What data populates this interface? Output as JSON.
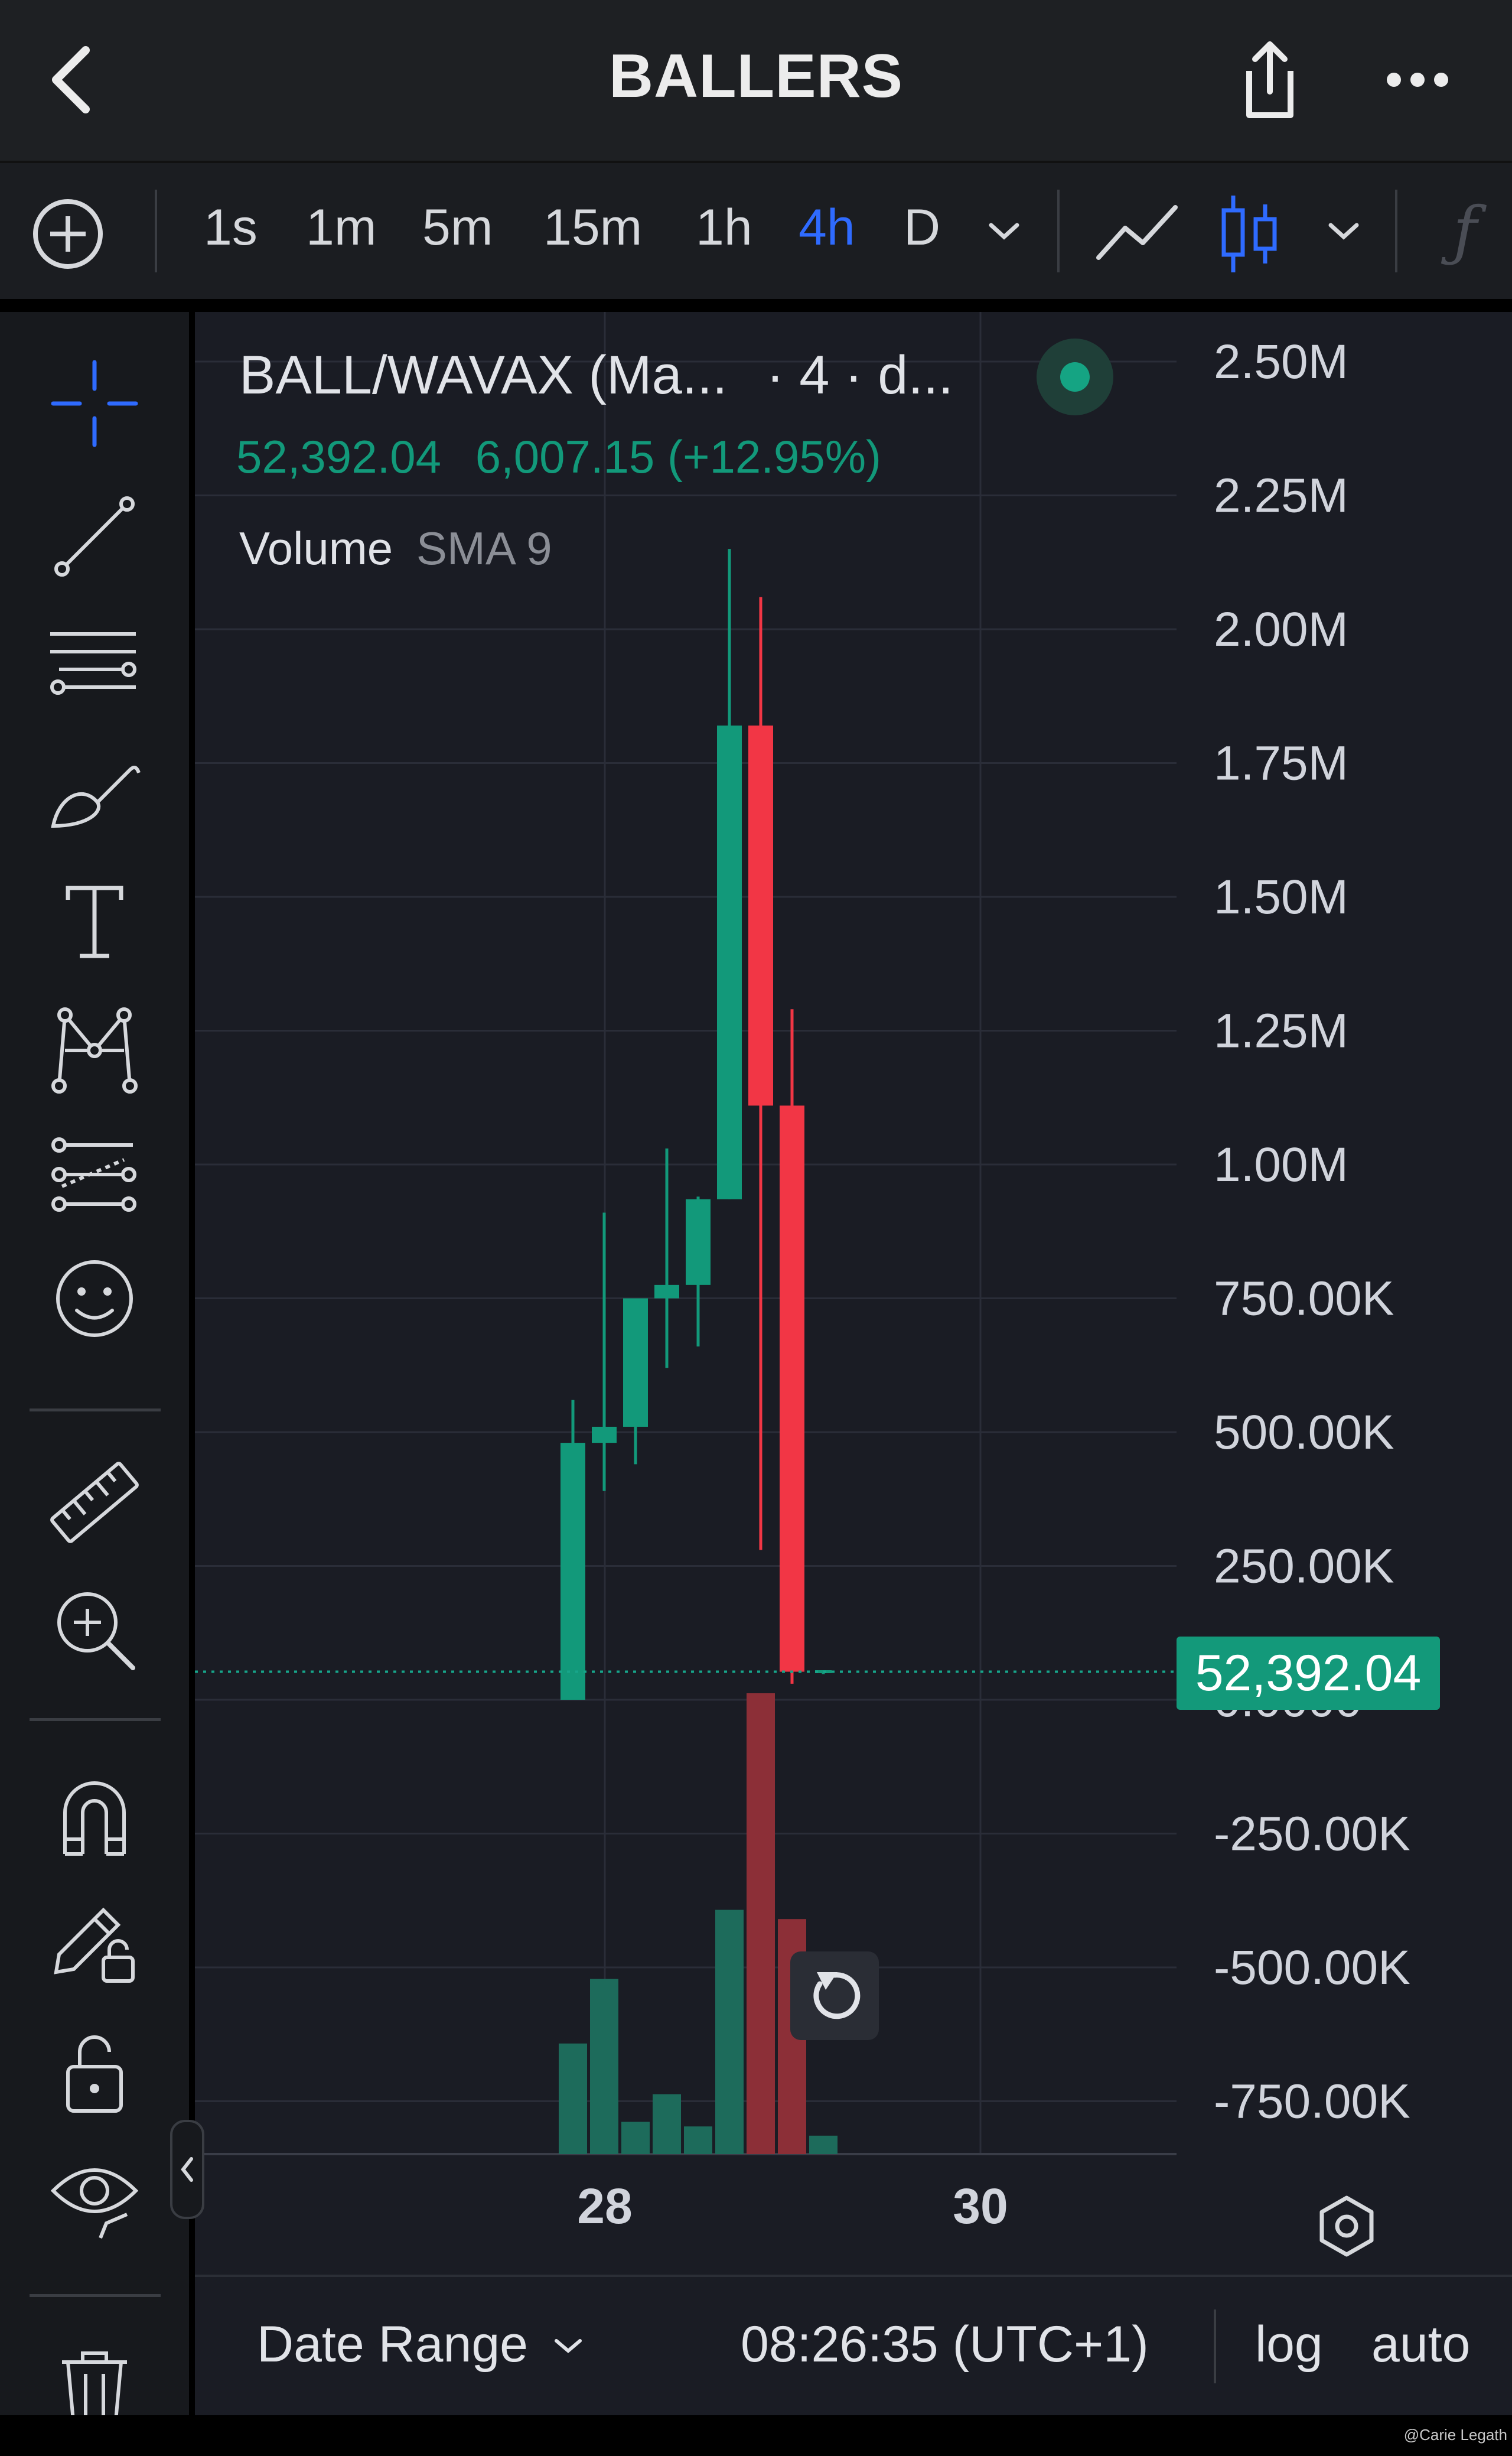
{
  "app": {
    "title": "BALLERS"
  },
  "toolbar": {
    "timeframes": [
      "1s",
      "1m",
      "5m",
      "15m",
      "1h",
      "4h",
      "D"
    ],
    "active_timeframe": "4h",
    "accent": "#2f6bff"
  },
  "legend": {
    "symbol": "BALL/WAVAX (Ma...",
    "interval": "· 4 · d...",
    "price": "52,392.04",
    "change": "6,007.15 (+12.95%)",
    "indicator_name": "Volume",
    "indicator_params": "SMA 9"
  },
  "price_label": "52,392.04",
  "bottom": {
    "date_range": "Date Range",
    "time": "08:26:35 (UTC+1)",
    "log": "log",
    "auto": "auto"
  },
  "watermark": "@Carie Legath",
  "colors": {
    "up": "#12997a",
    "down": "#f23645",
    "price_line": "#17a58a"
  },
  "chart_data": {
    "type": "candlestick",
    "y_axis": [
      "2.50M",
      "2.25M",
      "2.00M",
      "1.75M",
      "1.50M",
      "1.25M",
      "1.00M",
      "750.00K",
      "500.00K",
      "250.00K",
      "0.0000",
      "-250.00K",
      "-500.00K",
      "-750.00K"
    ],
    "x_axis": [
      "28",
      "30"
    ],
    "ylim": [
      -900000,
      2600000
    ],
    "last_price": 52392.04,
    "candles": [
      {
        "open": 0,
        "high": 560000,
        "low": 0,
        "close": 480000
      },
      {
        "open": 480000,
        "high": 910000,
        "low": 390000,
        "close": 510000
      },
      {
        "open": 510000,
        "high": 750000,
        "low": 440000,
        "close": 750000
      },
      {
        "open": 750000,
        "high": 1030000,
        "low": 620000,
        "close": 775000
      },
      {
        "open": 775000,
        "high": 940000,
        "low": 660000,
        "close": 935000
      },
      {
        "open": 935000,
        "high": 2150000,
        "low": 935000,
        "close": 1820000
      },
      {
        "open": 1820000,
        "high": 2060000,
        "low": 280000,
        "close": 1110000
      },
      {
        "open": 1110000,
        "high": 1290000,
        "low": 30000,
        "close": 52392
      },
      {
        "open": 52392,
        "high": 55000,
        "low": 48000,
        "close": 52392
      }
    ],
    "volume_heights": [
      0.24,
      0.38,
      0.07,
      0.13,
      0.06,
      0.53,
      1.0,
      0.51,
      0.04
    ]
  }
}
